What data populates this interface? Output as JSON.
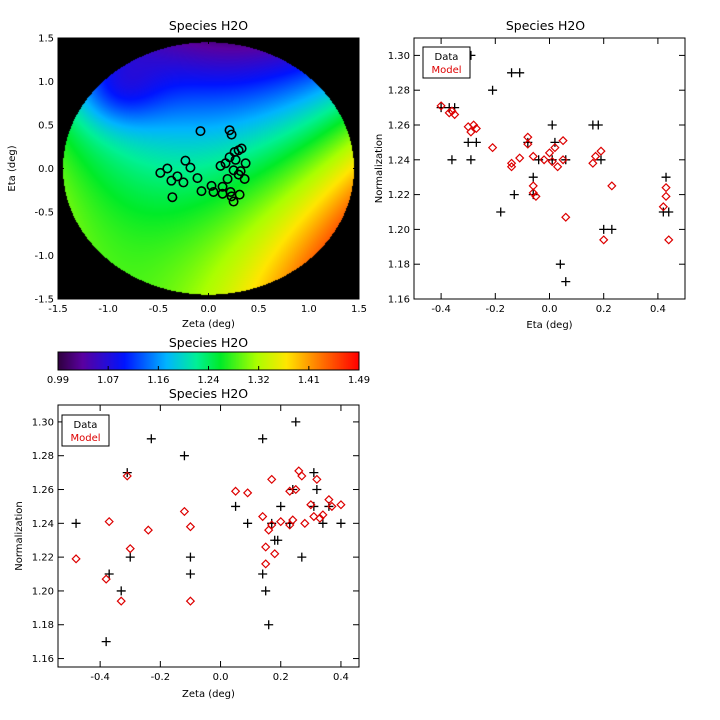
{
  "colors": {
    "data": "#000000",
    "model": "#dd0000",
    "background": "#ffffff"
  },
  "chart_data": [
    {
      "id": "map",
      "type": "heatmap",
      "title": "Species H2O",
      "xlabel": "Zeta (deg)",
      "ylabel": "Eta (deg)",
      "xlim": [
        -1.5,
        1.5
      ],
      "ylim": [
        -1.5,
        1.5
      ],
      "xticks": [
        -1.5,
        -1.0,
        -0.5,
        0.0,
        0.5,
        1.0,
        1.5
      ],
      "yticks": [
        -1.5,
        -1.0,
        -0.5,
        0.0,
        0.5,
        1.0,
        1.5
      ],
      "xtick_labels": [
        "-1.5",
        "-1.0",
        "-0.5",
        "0.0",
        "0.5",
        "1.0",
        "1.5"
      ],
      "ytick_labels": [
        "-1.5",
        "-1.0",
        "-0.5",
        "0.0",
        "0.5",
        "1.0",
        "1.5"
      ],
      "field_radius": 1.45,
      "outside_color": "#000000",
      "points": [
        [
          -0.08,
          0.43
        ],
        [
          0.21,
          0.44
        ],
        [
          0.23,
          0.39
        ],
        [
          0.33,
          0.23
        ],
        [
          0.3,
          0.21
        ],
        [
          0.26,
          0.19
        ],
        [
          0.21,
          0.13
        ],
        [
          0.27,
          0.1
        ],
        [
          0.37,
          0.06
        ],
        [
          0.17,
          0.06
        ],
        [
          -0.23,
          0.09
        ],
        [
          0.12,
          0.03
        ],
        [
          -0.41,
          0.0
        ],
        [
          -0.18,
          0.01
        ],
        [
          0.25,
          -0.02
        ],
        [
          0.32,
          -0.03
        ],
        [
          -0.48,
          -0.05
        ],
        [
          0.3,
          -0.07
        ],
        [
          -0.31,
          -0.09
        ],
        [
          -0.11,
          -0.11
        ],
        [
          0.19,
          -0.12
        ],
        [
          0.36,
          -0.12
        ],
        [
          -0.37,
          -0.14
        ],
        [
          -0.25,
          -0.16
        ],
        [
          0.03,
          -0.2
        ],
        [
          0.14,
          -0.21
        ],
        [
          -0.07,
          -0.26
        ],
        [
          0.05,
          -0.27
        ],
        [
          0.22,
          -0.27
        ],
        [
          0.14,
          -0.29
        ],
        [
          0.31,
          -0.3
        ],
        [
          0.23,
          -0.32
        ],
        [
          -0.36,
          -0.33
        ],
        [
          0.25,
          -0.38
        ]
      ]
    },
    {
      "id": "eta",
      "type": "scatter",
      "title": "Species H2O",
      "xlabel": "Eta (deg)",
      "ylabel": "Normalization",
      "xlim": [
        -0.5,
        0.5
      ],
      "ylim": [
        1.16,
        1.31
      ],
      "xticks": [
        -0.4,
        -0.2,
        0.0,
        0.2,
        0.4
      ],
      "yticks": [
        1.16,
        1.18,
        1.2,
        1.22,
        1.24,
        1.26,
        1.28,
        1.3
      ],
      "xtick_labels": [
        "-0.4",
        "-0.2",
        "0.0",
        "0.2",
        "0.4"
      ],
      "ytick_labels": [
        "1.16",
        "1.18",
        "1.20",
        "1.22",
        "1.24",
        "1.26",
        "1.28",
        "1.30"
      ],
      "legend": [
        "Data",
        "Model"
      ],
      "legend_position": "top-left",
      "series": [
        {
          "name": "Data",
          "marker": "plus",
          "points": [
            [
              -0.4,
              1.27
            ],
            [
              -0.37,
              1.27
            ],
            [
              -0.35,
              1.27
            ],
            [
              -0.36,
              1.24
            ],
            [
              -0.29,
              1.3
            ],
            [
              -0.3,
              1.25
            ],
            [
              -0.27,
              1.25
            ],
            [
              -0.29,
              1.24
            ],
            [
              -0.21,
              1.28
            ],
            [
              -0.14,
              1.29
            ],
            [
              -0.11,
              1.29
            ],
            [
              -0.18,
              1.21
            ],
            [
              -0.13,
              1.22
            ],
            [
              -0.08,
              1.25
            ],
            [
              -0.06,
              1.23
            ],
            [
              -0.06,
              1.22
            ],
            [
              -0.04,
              1.24
            ],
            [
              0.01,
              1.26
            ],
            [
              0.02,
              1.25
            ],
            [
              0.01,
              1.24
            ],
            [
              0.04,
              1.18
            ],
            [
              0.06,
              1.24
            ],
            [
              0.06,
              1.17
            ],
            [
              0.16,
              1.26
            ],
            [
              0.18,
              1.26
            ],
            [
              0.19,
              1.24
            ],
            [
              0.2,
              1.2
            ],
            [
              0.23,
              1.2
            ],
            [
              0.43,
              1.23
            ],
            [
              0.42,
              1.21
            ],
            [
              0.44,
              1.21
            ]
          ]
        },
        {
          "name": "Model",
          "marker": "diamond",
          "points": [
            [
              -0.4,
              1.271
            ],
            [
              -0.37,
              1.267
            ],
            [
              -0.36,
              1.268
            ],
            [
              -0.35,
              1.266
            ],
            [
              -0.3,
              1.259
            ],
            [
              -0.29,
              1.256
            ],
            [
              -0.28,
              1.26
            ],
            [
              -0.27,
              1.258
            ],
            [
              -0.21,
              1.247
            ],
            [
              -0.14,
              1.236
            ],
            [
              -0.14,
              1.238
            ],
            [
              -0.11,
              1.241
            ],
            [
              -0.08,
              1.253
            ],
            [
              -0.08,
              1.249
            ],
            [
              -0.06,
              1.242
            ],
            [
              -0.06,
              1.225
            ],
            [
              -0.06,
              1.221
            ],
            [
              -0.05,
              1.219
            ],
            [
              -0.02,
              1.24
            ],
            [
              0.0,
              1.244
            ],
            [
              0.01,
              1.239
            ],
            [
              0.02,
              1.247
            ],
            [
              0.03,
              1.236
            ],
            [
              0.05,
              1.251
            ],
            [
              0.05,
              1.24
            ],
            [
              0.06,
              1.207
            ],
            [
              0.16,
              1.238
            ],
            [
              0.17,
              1.242
            ],
            [
              0.19,
              1.245
            ],
            [
              0.2,
              1.194
            ],
            [
              0.23,
              1.225
            ],
            [
              0.43,
              1.224
            ],
            [
              0.43,
              1.219
            ],
            [
              0.42,
              1.213
            ],
            [
              0.44,
              1.194
            ]
          ]
        }
      ]
    },
    {
      "id": "colorbar",
      "type": "colorbar",
      "title": "Species H2O",
      "range": [
        0.99,
        1.49
      ],
      "tick_labels": [
        "0.99",
        "1.07",
        "1.16",
        "1.24",
        "1.32",
        "1.41",
        "1.49"
      ]
    },
    {
      "id": "zeta",
      "type": "scatter",
      "title": "Species H2O",
      "xlabel": "Zeta (deg)",
      "ylabel": "Normalization",
      "xlim": [
        -0.54,
        0.46
      ],
      "ylim": [
        1.155,
        1.31
      ],
      "xticks": [
        -0.4,
        -0.2,
        0.0,
        0.2,
        0.4
      ],
      "yticks": [
        1.16,
        1.18,
        1.2,
        1.22,
        1.24,
        1.26,
        1.28,
        1.3
      ],
      "xtick_labels": [
        "-0.4",
        "-0.2",
        "0.0",
        "0.2",
        "0.4"
      ],
      "ytick_labels": [
        "1.16",
        "1.18",
        "1.20",
        "1.22",
        "1.24",
        "1.26",
        "1.28",
        "1.30"
      ],
      "legend": [
        "Data",
        "Model"
      ],
      "legend_position": "top-left",
      "series": [
        {
          "name": "Data",
          "marker": "plus",
          "points": [
            [
              -0.48,
              1.24
            ],
            [
              -0.38,
              1.17
            ],
            [
              -0.37,
              1.21
            ],
            [
              -0.33,
              1.2
            ],
            [
              -0.31,
              1.27
            ],
            [
              -0.3,
              1.22
            ],
            [
              -0.23,
              1.29
            ],
            [
              -0.12,
              1.28
            ],
            [
              -0.1,
              1.22
            ],
            [
              -0.1,
              1.21
            ],
            [
              0.05,
              1.25
            ],
            [
              0.09,
              1.24
            ],
            [
              0.14,
              1.29
            ],
            [
              0.14,
              1.21
            ],
            [
              0.15,
              1.2
            ],
            [
              0.16,
              1.18
            ],
            [
              0.17,
              1.24
            ],
            [
              0.18,
              1.23
            ],
            [
              0.19,
              1.23
            ],
            [
              0.2,
              1.25
            ],
            [
              0.23,
              1.24
            ],
            [
              0.24,
              1.26
            ],
            [
              0.25,
              1.3
            ],
            [
              0.27,
              1.22
            ],
            [
              0.31,
              1.27
            ],
            [
              0.31,
              1.25
            ],
            [
              0.32,
              1.26
            ],
            [
              0.34,
              1.24
            ],
            [
              0.36,
              1.25
            ],
            [
              0.4,
              1.24
            ]
          ]
        },
        {
          "name": "Model",
          "marker": "diamond",
          "points": [
            [
              -0.48,
              1.219
            ],
            [
              -0.37,
              1.241
            ],
            [
              -0.38,
              1.207
            ],
            [
              -0.33,
              1.194
            ],
            [
              -0.31,
              1.268
            ],
            [
              -0.3,
              1.225
            ],
            [
              -0.24,
              1.236
            ],
            [
              -0.12,
              1.247
            ],
            [
              -0.1,
              1.238
            ],
            [
              -0.1,
              1.194
            ],
            [
              0.05,
              1.259
            ],
            [
              0.09,
              1.258
            ],
            [
              0.14,
              1.244
            ],
            [
              0.15,
              1.226
            ],
            [
              0.15,
              1.216
            ],
            [
              0.16,
              1.236
            ],
            [
              0.17,
              1.266
            ],
            [
              0.17,
              1.239
            ],
            [
              0.18,
              1.222
            ],
            [
              0.2,
              1.241
            ],
            [
              0.23,
              1.259
            ],
            [
              0.23,
              1.239
            ],
            [
              0.24,
              1.242
            ],
            [
              0.25,
              1.26
            ],
            [
              0.26,
              1.271
            ],
            [
              0.27,
              1.268
            ],
            [
              0.28,
              1.24
            ],
            [
              0.3,
              1.251
            ],
            [
              0.31,
              1.244
            ],
            [
              0.32,
              1.266
            ],
            [
              0.33,
              1.243
            ],
            [
              0.34,
              1.245
            ],
            [
              0.36,
              1.254
            ],
            [
              0.37,
              1.25
            ],
            [
              0.4,
              1.251
            ]
          ]
        }
      ]
    }
  ]
}
